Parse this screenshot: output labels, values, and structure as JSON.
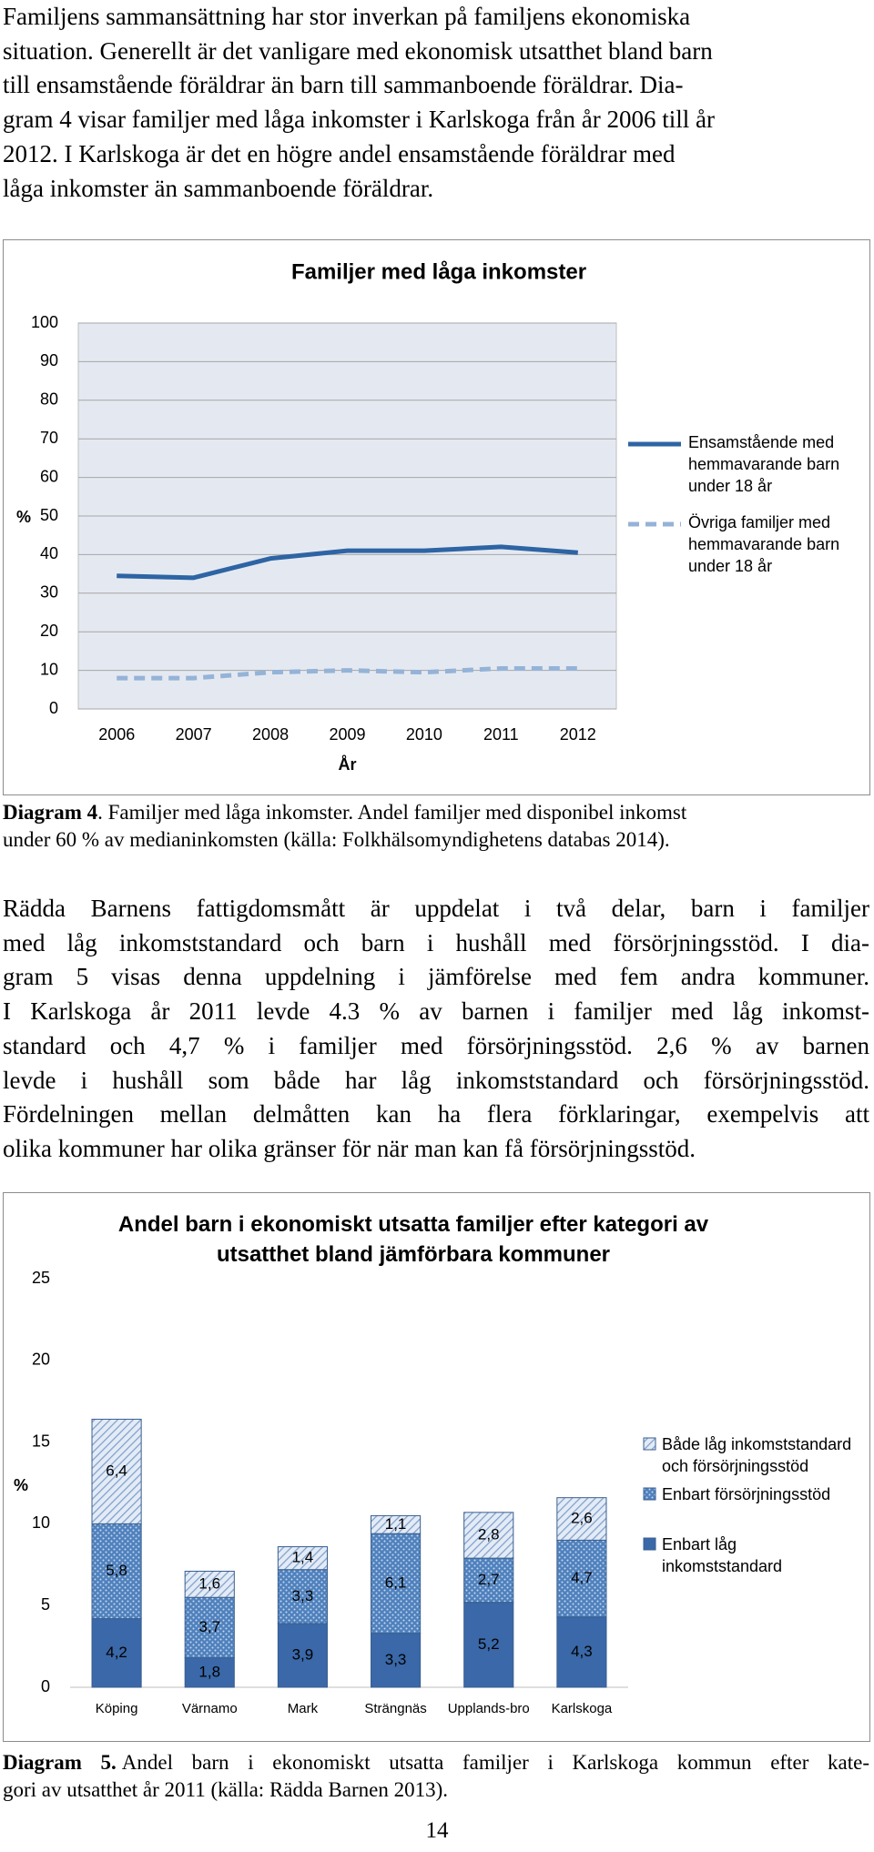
{
  "paragraphs": [
    {
      "lines": [
        "Familjens sammansättning har stor inverkan på familjens ekonomiska",
        "situation. Generellt är det vanligare med ekonomisk utsatthet bland barn",
        "till ensamstående föräldrar än barn till sammanboende föräldrar. Dia-",
        "gram 4 visar familjer med låga inkomster i Karlskoga från år 2006 till år",
        "2012. I Karlskoga är det en högre andel ensamstående föräldrar med",
        "låga inkomster än sammanboende föräldrar."
      ]
    },
    {
      "lines": [
        "Rädda Barnens fattigdomsmått är uppdelat i två delar, barn i familjer",
        "med låg inkomststandard och barn i hushåll med försörjningsstöd. I dia-",
        "gram 5 visas denna uppdelning i jämförelse med fem andra kommuner.",
        "I Karlskoga år 2011 levde 4.3 % av barnen i familjer med låg inkomst-",
        "standard och 4,7 % i familjer med försörjningsstöd. 2,6 % av barnen",
        "levde i hushåll som både har låg inkomststandard och försörjningsstöd.",
        "Fördelningen mellan delmåtten kan ha flera förklaringar, exempelvis att",
        "olika kommuner har olika gränser för när man kan få försörjningsstöd."
      ]
    }
  ],
  "captions": [
    {
      "label": "Diagram 4",
      "lines": [
        ". Familjer med låga inkomster. Andel familjer med disponibel inkomst",
        "under 60 % av medianinkomsten (källa: Folkhälsomyndighetens databas 2014)."
      ]
    },
    {
      "label": "Diagram 5.",
      "lines": [
        "Andel barn i ekonomiskt utsatta familjer i Karlskoga kommun efter kate-",
        "gori av utsatthet år 2011 (källa: Rädda Barnen 2013)."
      ]
    }
  ],
  "page_number": "14",
  "chart_data": [
    {
      "type": "line",
      "title": "Familjer med låga inkomster",
      "y_label": "%",
      "x_label": "År",
      "categories": [
        "2006",
        "2007",
        "2008",
        "2009",
        "2010",
        "2011",
        "2012"
      ],
      "series": [
        {
          "name": "Ensamstående med hemmavarande barn under 18 år",
          "color": "#2e64a4",
          "style": "solid",
          "values": [
            34.5,
            34,
            39,
            41,
            41,
            42,
            40.5
          ]
        },
        {
          "name": "Övriga familjer med hemmavarande barn under 18 år",
          "color": "#95b3d7",
          "style": "dashed",
          "values": [
            8,
            8,
            9.5,
            10,
            9.5,
            10.5,
            10.5
          ]
        }
      ],
      "ylim": [
        0,
        100
      ],
      "yticks": [
        0,
        10,
        20,
        30,
        40,
        50,
        60,
        70,
        80,
        90,
        100
      ],
      "grid": true,
      "legend": "right"
    },
    {
      "type": "stacked-bar",
      "title": "Andel barn i ekonomiskt utsatta familjer efter kategori av utsatthet bland jämförbara kommuner",
      "y_label": "%",
      "categories": [
        "Köping",
        "Värnamo",
        "Mark",
        "Strängnäs",
        "Upplands-bro",
        "Karlskoga"
      ],
      "series": [
        {
          "name": "Enbart låg inkomststandard",
          "color": "#3a68a8",
          "pattern": "solid",
          "values": [
            4.2,
            1.8,
            3.9,
            3.3,
            5.2,
            4.3
          ],
          "value_labels": [
            "4,2",
            "1,8",
            "3,9",
            "3,3",
            "5,2",
            "4,3"
          ]
        },
        {
          "name": "Enbart försörjningsstöd",
          "color": "#4f81bd",
          "pattern": "dots",
          "values": [
            5.8,
            3.7,
            3.3,
            6.1,
            2.7,
            4.7
          ],
          "value_labels": [
            "5,8",
            "3,7",
            "3,3",
            "6,1",
            "2,7",
            "4,7"
          ]
        },
        {
          "name": "Både låg inkomststandard och försörjningsstöd",
          "color": "#a7bfde",
          "pattern": "hatch",
          "values": [
            6.4,
            1.6,
            1.4,
            1.1,
            2.8,
            2.6
          ],
          "value_labels": [
            "6,4",
            "1,6",
            "1,4",
            "1,1",
            "2,8",
            "2,6"
          ]
        }
      ],
      "ylim": [
        0,
        25
      ],
      "yticks": [
        0,
        5,
        10,
        15,
        20,
        25
      ],
      "grid": false,
      "legend": "right"
    }
  ]
}
